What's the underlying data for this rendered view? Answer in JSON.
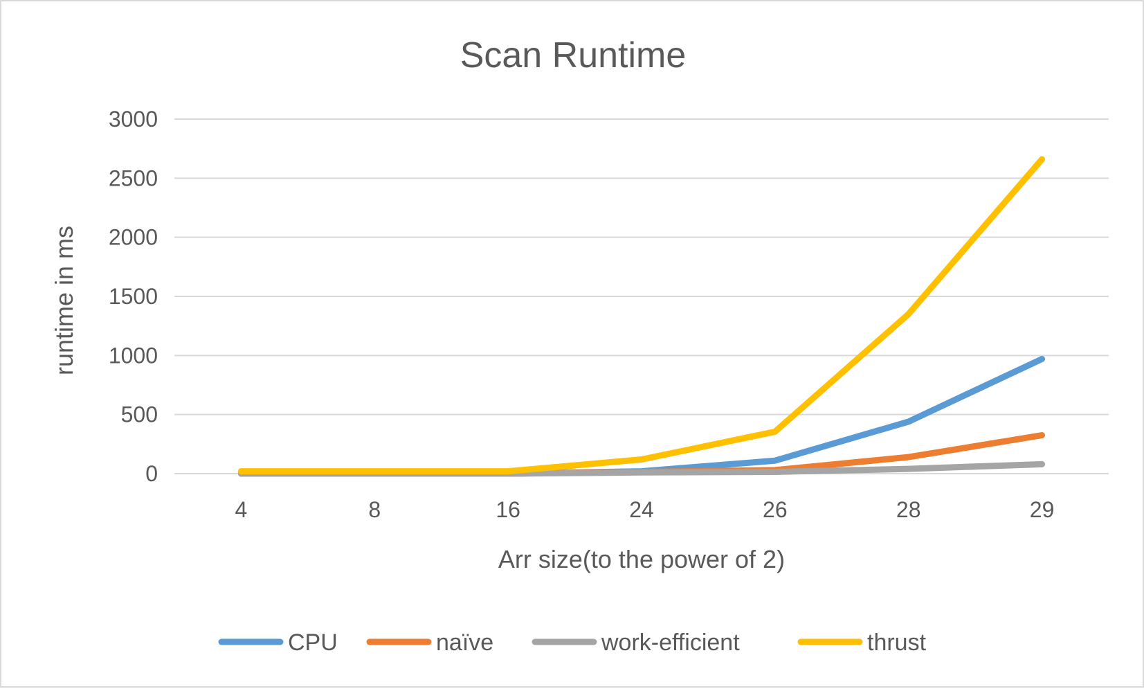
{
  "chart_data": {
    "type": "line",
    "title": "Scan Runtime",
    "xlabel": "Arr size(to the power of 2)",
    "ylabel": "runtime in ms",
    "categories": [
      "4",
      "8",
      "16",
      "24",
      "26",
      "28",
      "29"
    ],
    "ylim": [
      0,
      3000
    ],
    "yticks": [
      0,
      500,
      1000,
      1500,
      2000,
      2500,
      3000
    ],
    "grid": true,
    "legend_position": "bottom",
    "series": [
      {
        "name": "CPU",
        "color": "#5b9bd5",
        "values": [
          0,
          0,
          0,
          20,
          110,
          440,
          970
        ]
      },
      {
        "name": "naïve",
        "color": "#ed7d31",
        "values": [
          0,
          0,
          0,
          15,
          30,
          140,
          325
        ]
      },
      {
        "name": "work-efficient",
        "color": "#a5a5a5",
        "values": [
          0,
          0,
          0,
          10,
          15,
          40,
          80
        ]
      },
      {
        "name": "thrust",
        "color": "#ffc000",
        "values": [
          20,
          20,
          20,
          120,
          355,
          1350,
          2660
        ]
      }
    ]
  }
}
